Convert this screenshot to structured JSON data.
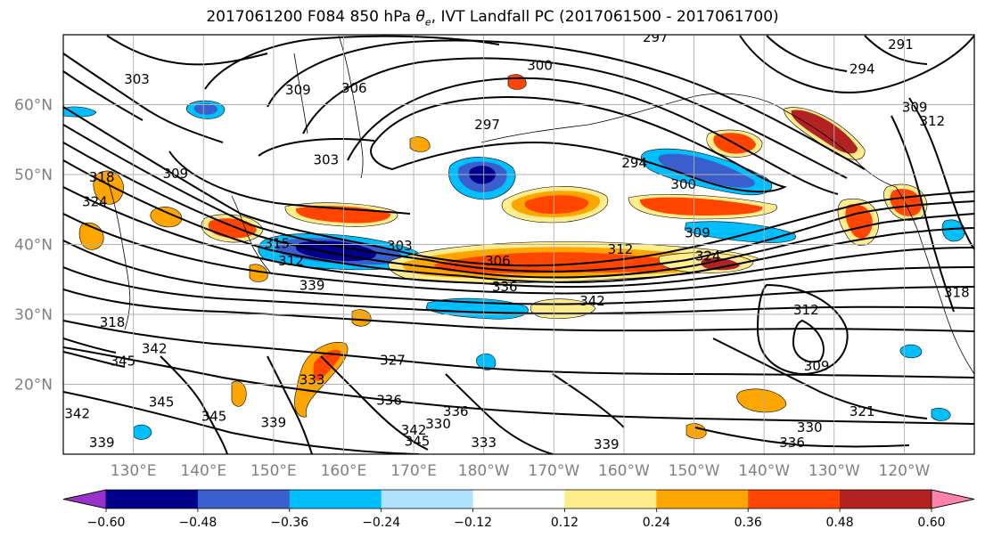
{
  "figure": {
    "title_prefix": "2017061200 F084 850 hPa ",
    "title_symbol": "θ",
    "title_subscript": "e",
    "title_suffix": ", IVT Landfall PC (2017061500 - 2017061700)"
  },
  "map": {
    "lat_labels": [
      {
        "text": "20°N",
        "lat": 20
      },
      {
        "text": "30°N",
        "lat": 30
      },
      {
        "text": "40°N",
        "lat": 40
      },
      {
        "text": "50°N",
        "lat": 50
      },
      {
        "text": "60°N",
        "lat": 60
      }
    ],
    "lon_labels": [
      {
        "text": "130°E",
        "lon": 130
      },
      {
        "text": "140°E",
        "lon": 140
      },
      {
        "text": "150°E",
        "lon": 150
      },
      {
        "text": "160°E",
        "lon": 160
      },
      {
        "text": "170°E",
        "lon": 170
      },
      {
        "text": "180°W",
        "lon": 180
      },
      {
        "text": "170°W",
        "lon": 190
      },
      {
        "text": "160°W",
        "lon": 200
      },
      {
        "text": "150°W",
        "lon": 210
      },
      {
        "text": "140°W",
        "lon": 220
      },
      {
        "text": "130°W",
        "lon": 230
      },
      {
        "text": "120°W",
        "lon": 240
      }
    ],
    "lon_range": [
      120,
      250
    ],
    "lat_range": [
      10,
      70
    ],
    "contour_labels": [
      {
        "text": "303",
        "lon": 130.5,
        "lat": 63.5
      },
      {
        "text": "309",
        "lon": 153.5,
        "lat": 62
      },
      {
        "text": "306",
        "lon": 161.5,
        "lat": 62.2
      },
      {
        "text": "300",
        "lon": 188,
        "lat": 65.5
      },
      {
        "text": "297",
        "lon": 204.5,
        "lat": 69.5
      },
      {
        "text": "291",
        "lon": 239.5,
        "lat": 68.5
      },
      {
        "text": "294",
        "lon": 234,
        "lat": 65
      },
      {
        "text": "297",
        "lon": 180.5,
        "lat": 57
      },
      {
        "text": "303",
        "lon": 157.5,
        "lat": 52
      },
      {
        "text": "294",
        "lon": 201.5,
        "lat": 51.5
      },
      {
        "text": "300",
        "lon": 208.5,
        "lat": 48.5
      },
      {
        "text": "309",
        "lon": 136,
        "lat": 50
      },
      {
        "text": "324",
        "lon": 124.5,
        "lat": 46
      },
      {
        "text": "315",
        "lon": 150.5,
        "lat": 40
      },
      {
        "text": "303",
        "lon": 168,
        "lat": 39.7
      },
      {
        "text": "309",
        "lon": 210.5,
        "lat": 41.5
      },
      {
        "text": "312",
        "lon": 152.5,
        "lat": 37.5
      },
      {
        "text": "306",
        "lon": 182,
        "lat": 37.5
      },
      {
        "text": "312",
        "lon": 199.5,
        "lat": 39.2
      },
      {
        "text": "324",
        "lon": 212,
        "lat": 38.2
      },
      {
        "text": "336",
        "lon": 183,
        "lat": 33.8
      },
      {
        "text": "339",
        "lon": 155.5,
        "lat": 34
      },
      {
        "text": "342",
        "lon": 195.5,
        "lat": 31.8
      },
      {
        "text": "312",
        "lon": 226,
        "lat": 30.5
      },
      {
        "text": "318",
        "lon": 127,
        "lat": 28.7
      },
      {
        "text": "342",
        "lon": 133,
        "lat": 25
      },
      {
        "text": "345",
        "lon": 128.5,
        "lat": 23.2
      },
      {
        "text": "309",
        "lon": 227.5,
        "lat": 22.5
      },
      {
        "text": "327",
        "lon": 167,
        "lat": 23.3
      },
      {
        "text": "333",
        "lon": 155.5,
        "lat": 20.5
      },
      {
        "text": "345",
        "lon": 134,
        "lat": 17.3
      },
      {
        "text": "336",
        "lon": 166.5,
        "lat": 17.6
      },
      {
        "text": "342",
        "lon": 122,
        "lat": 15.7
      },
      {
        "text": "345",
        "lon": 141.5,
        "lat": 15.3
      },
      {
        "text": "339",
        "lon": 150,
        "lat": 14.4
      },
      {
        "text": "336",
        "lon": 176,
        "lat": 16
      },
      {
        "text": "330",
        "lon": 173.5,
        "lat": 14.2
      },
      {
        "text": "342",
        "lon": 170,
        "lat": 13.3
      },
      {
        "text": "345",
        "lon": 170.5,
        "lat": 11.7
      },
      {
        "text": "333",
        "lon": 180,
        "lat": 11.5
      },
      {
        "text": "339",
        "lon": 197.5,
        "lat": 11.3
      },
      {
        "text": "321",
        "lon": 234,
        "lat": 16
      },
      {
        "text": "330",
        "lon": 226.5,
        "lat": 13.7
      },
      {
        "text": "336",
        "lon": 224,
        "lat": 11.5
      },
      {
        "text": "339",
        "lon": 125.5,
        "lat": 11.5
      },
      {
        "text": "318",
        "lon": 125.5,
        "lat": 49.5
      },
      {
        "text": "309",
        "lon": 241.5,
        "lat": 59.5
      },
      {
        "text": "312",
        "lon": 244,
        "lat": 57.5
      },
      {
        "text": "318",
        "lon": 247.5,
        "lat": 33
      }
    ]
  },
  "colorbar": {
    "levels": [
      -0.72,
      -0.6,
      -0.48,
      -0.36,
      -0.24,
      -0.12,
      0.12,
      0.24,
      0.36,
      0.48,
      0.6,
      0.72
    ],
    "colors": [
      "#9932cc",
      "#00008b",
      "#3a5fcd",
      "#00bfff",
      "#b0e2ff",
      "#ffffff",
      "#ffec8b",
      "#ffa500",
      "#ff4500",
      "#b22222",
      "#ff82ab"
    ],
    "tick_labels": [
      {
        "text": "−0.60",
        "value": -0.6
      },
      {
        "text": "−0.48",
        "value": -0.48
      },
      {
        "text": "−0.36",
        "value": -0.36
      },
      {
        "text": "−0.24",
        "value": -0.24
      },
      {
        "text": "−0.12",
        "value": -0.12
      },
      {
        "text": "0.12",
        "value": 0.12
      },
      {
        "text": "0.24",
        "value": 0.24
      },
      {
        "text": "0.36",
        "value": 0.36
      },
      {
        "text": "0.48",
        "value": 0.48
      },
      {
        "text": "0.60",
        "value": 0.6
      }
    ],
    "extend": "both"
  }
}
